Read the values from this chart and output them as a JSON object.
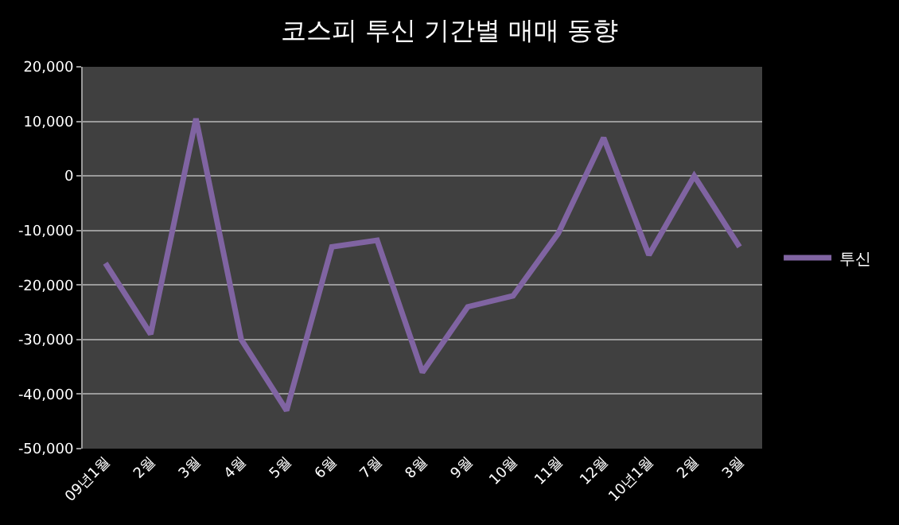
{
  "chart_data": {
    "type": "line",
    "title": "코스피 투신 기간별 매매 동향",
    "categories": [
      "09년1월",
      "2월",
      "3월",
      "4월",
      "5월",
      "6월",
      "7월",
      "8월",
      "9월",
      "10월",
      "11월",
      "12월",
      "10년1월",
      "2월",
      "3월"
    ],
    "series": [
      {
        "name": "투신",
        "color": "#8064a2",
        "values": [
          -16000,
          -29000,
          10500,
          -30000,
          -43000,
          -13000,
          -11800,
          -36000,
          -24000,
          -22000,
          -10500,
          7000,
          -14500,
          0,
          -13000
        ]
      }
    ],
    "ylim": [
      -50000,
      20000
    ],
    "yticks": [
      {
        "value": -50000,
        "label": "-50,000"
      },
      {
        "value": -40000,
        "label": "-40,000"
      },
      {
        "value": -30000,
        "label": "-30,000"
      },
      {
        "value": -20000,
        "label": "-20,000"
      },
      {
        "value": -10000,
        "label": "-10,000"
      },
      0,
      {
        "value": 10000,
        "label": "10,000"
      },
      {
        "value": 20000,
        "label": "20,000"
      }
    ],
    "grid": "y",
    "legend": "right",
    "line_style": "solid",
    "marker": "none"
  }
}
